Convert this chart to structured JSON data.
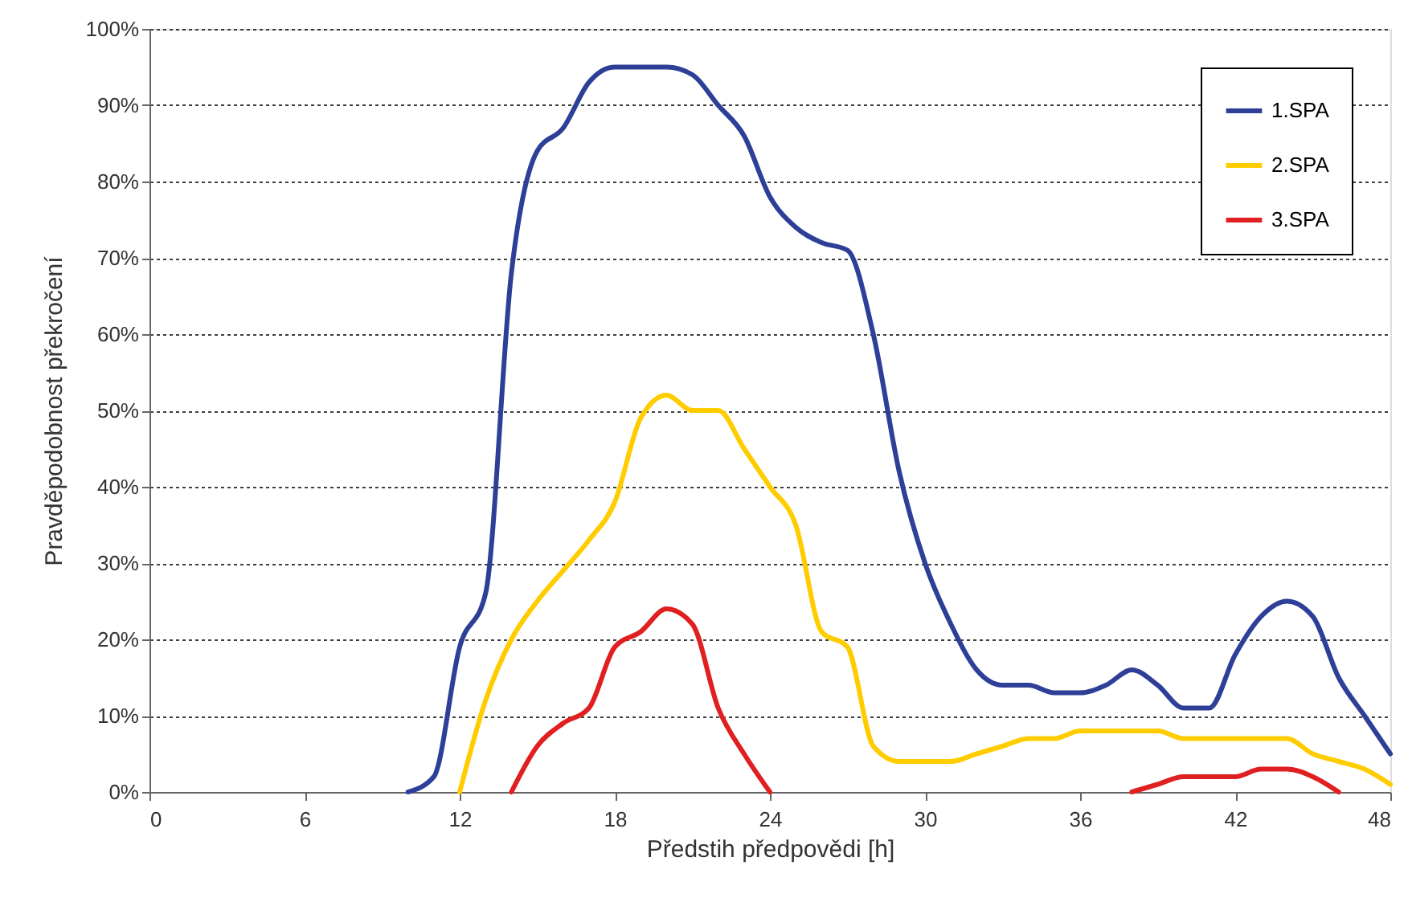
{
  "chart_data": {
    "type": "line",
    "xlabel": "Předstih předpovědi [h]",
    "ylabel": "Pravděpodobnost překročení",
    "x": [
      10,
      11,
      12,
      13,
      14,
      15,
      16,
      17,
      18,
      19,
      20,
      21,
      22,
      23,
      24,
      25,
      26,
      27,
      28,
      29,
      30,
      31,
      32,
      33,
      34,
      35,
      36,
      37,
      38,
      39,
      40,
      41,
      42,
      43,
      44,
      45,
      46,
      47,
      48
    ],
    "series": [
      {
        "name": "1.SPA",
        "color": "#2e3f97",
        "values": [
          0,
          2,
          19,
          26,
          68,
          84,
          87,
          93,
          95,
          95,
          95,
          94,
          90,
          86,
          78,
          74,
          72,
          71,
          60,
          42,
          30,
          22,
          16,
          14,
          14,
          13,
          13,
          14,
          16,
          14,
          11,
          11,
          18,
          23,
          25,
          23,
          15,
          10,
          5
        ]
      },
      {
        "name": "2.SPA",
        "color": "#ffcc00",
        "values": [
          null,
          null,
          0,
          12,
          20,
          25,
          29,
          33,
          38,
          49,
          52,
          50,
          50,
          45,
          40,
          35,
          21,
          19,
          6,
          4,
          4,
          4,
          5,
          6,
          7,
          7,
          8,
          8,
          8,
          8,
          7,
          7,
          7,
          7,
          7,
          5,
          4,
          3,
          1
        ]
      },
      {
        "name": "3.SPA",
        "color": "#e02020",
        "values": [
          null,
          null,
          null,
          null,
          0,
          6,
          9,
          11,
          19,
          21,
          24,
          22,
          11,
          5,
          0,
          null,
          null,
          null,
          null,
          null,
          null,
          null,
          null,
          null,
          null,
          null,
          null,
          null,
          0,
          1,
          2,
          2,
          2,
          3,
          3,
          2,
          0,
          null,
          null
        ]
      }
    ],
    "xlim": [
      0,
      48
    ],
    "xticks": [
      0,
      6,
      12,
      18,
      24,
      30,
      36,
      42,
      48
    ],
    "ylim": [
      0,
      100
    ],
    "yticks": [
      {
        "value": 0,
        "label": "0%"
      },
      {
        "value": 10,
        "label": "10%"
      },
      {
        "value": 20,
        "label": "20%"
      },
      {
        "value": 30,
        "label": "30%"
      },
      {
        "value": 40,
        "label": "40%"
      },
      {
        "value": 50,
        "label": "50%"
      },
      {
        "value": 60,
        "label": "60%"
      },
      {
        "value": 70,
        "label": "70%"
      },
      {
        "value": 80,
        "label": "80%"
      },
      {
        "value": 90,
        "label": "90%"
      },
      {
        "value": 100,
        "label": "100%"
      }
    ],
    "grid": "y",
    "legend": "top right",
    "marker": "none",
    "line_style": "solid"
  }
}
